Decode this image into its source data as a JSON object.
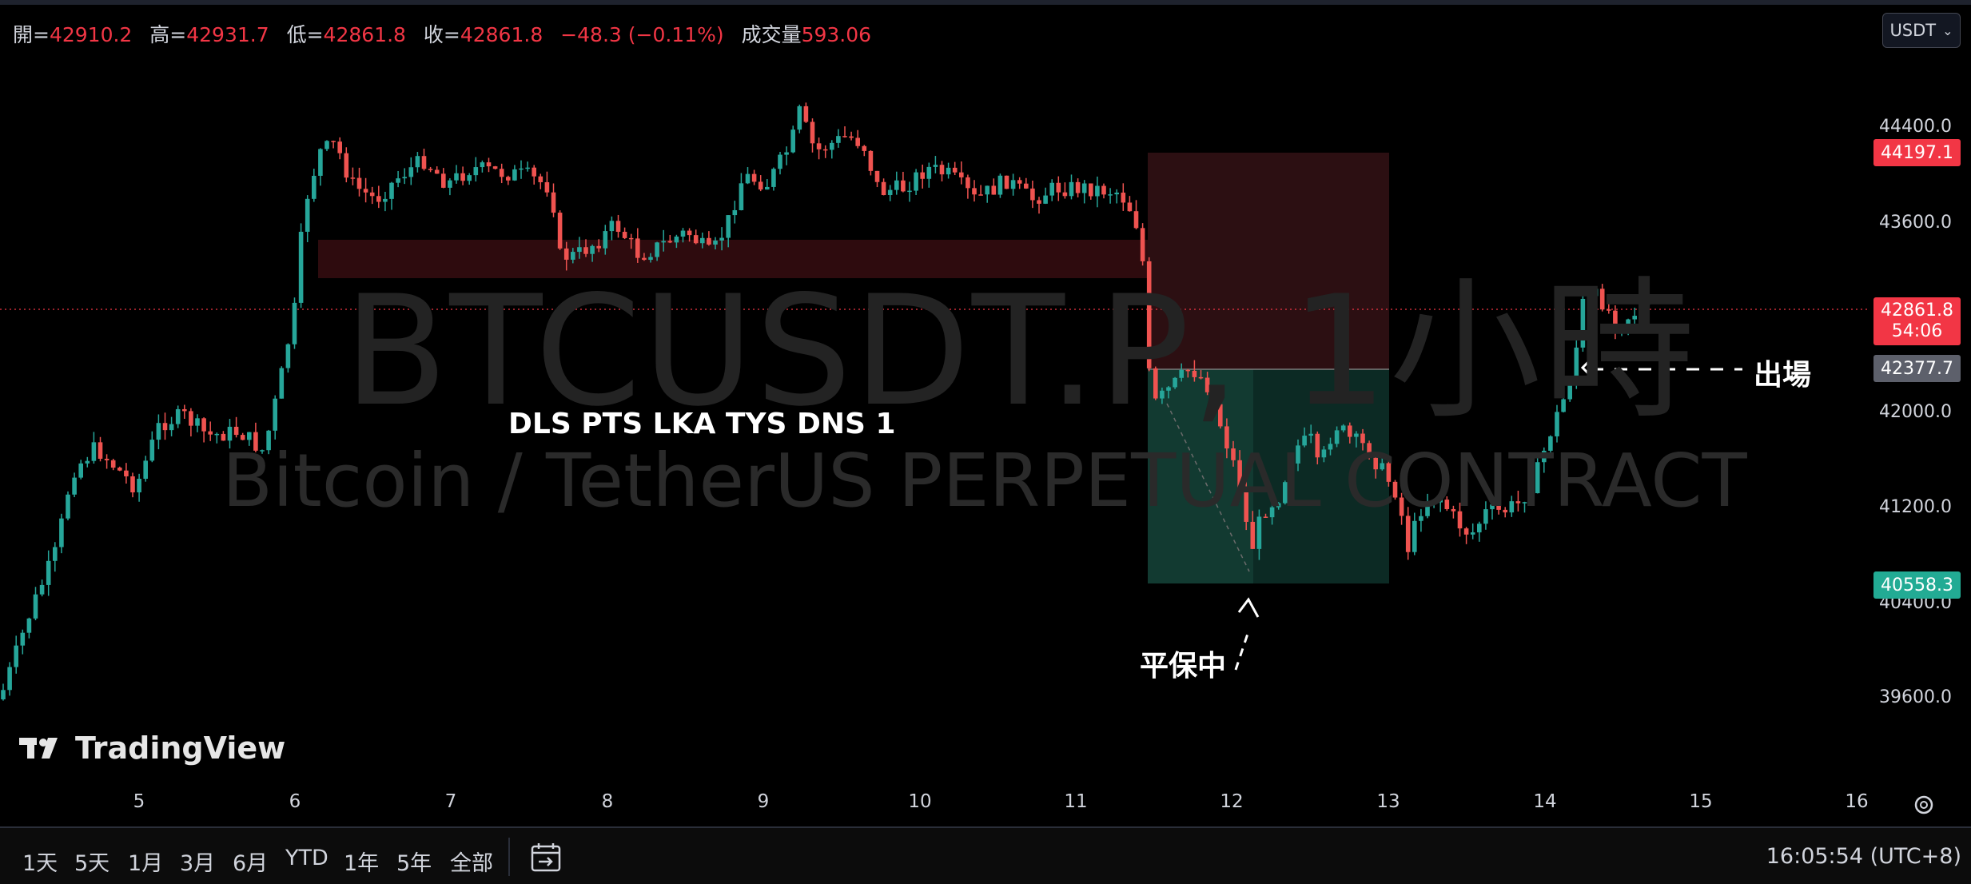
{
  "ohlc": {
    "open_label": "開=",
    "open": "42910.2",
    "high_label": "高=",
    "high": "42931.7",
    "low_label": "低=",
    "low": "42861.8",
    "close_label": "收=",
    "close": "42861.8",
    "change": "−48.3 (−0.11%)",
    "volume_label": "成交量",
    "volume": "593.06"
  },
  "currency": {
    "value": "USDT"
  },
  "watermark": {
    "symbol": "BTCUSDT.P, 1小時",
    "description": "Bitcoin / TetherUS PERPETUAL CONTRACT"
  },
  "annotations": {
    "strategy": "DLS PTS LKA TYS DNS 1",
    "breakeven": "平保中",
    "exit": "出場"
  },
  "price_axis": {
    "ticks": [
      "44400.0",
      "43600.0",
      "42000.0",
      "41200.0",
      "40400.0",
      "39600.0"
    ],
    "stop_label": "44197.1",
    "last_price": "42861.8",
    "countdown": "54:06",
    "entry_label": "42377.7",
    "target_label": "40558.3"
  },
  "date_axis": {
    "labels": [
      "5",
      "6",
      "7",
      "8",
      "9",
      "10",
      "11",
      "12",
      "13",
      "14",
      "15",
      "16"
    ]
  },
  "logo": {
    "text": "TradingView"
  },
  "ranges": {
    "items": [
      "1天",
      "5天",
      "1月",
      "3月",
      "6月",
      "YTD",
      "1年",
      "5年",
      "全部"
    ]
  },
  "clock": {
    "time": "16:05:54 (UTC+8)"
  },
  "colors": {
    "up": "#26a69a",
    "down": "#ef5350",
    "stop_zone": "#3b1216",
    "target_zone": "#0d2e27",
    "bg": "#000000"
  }
}
